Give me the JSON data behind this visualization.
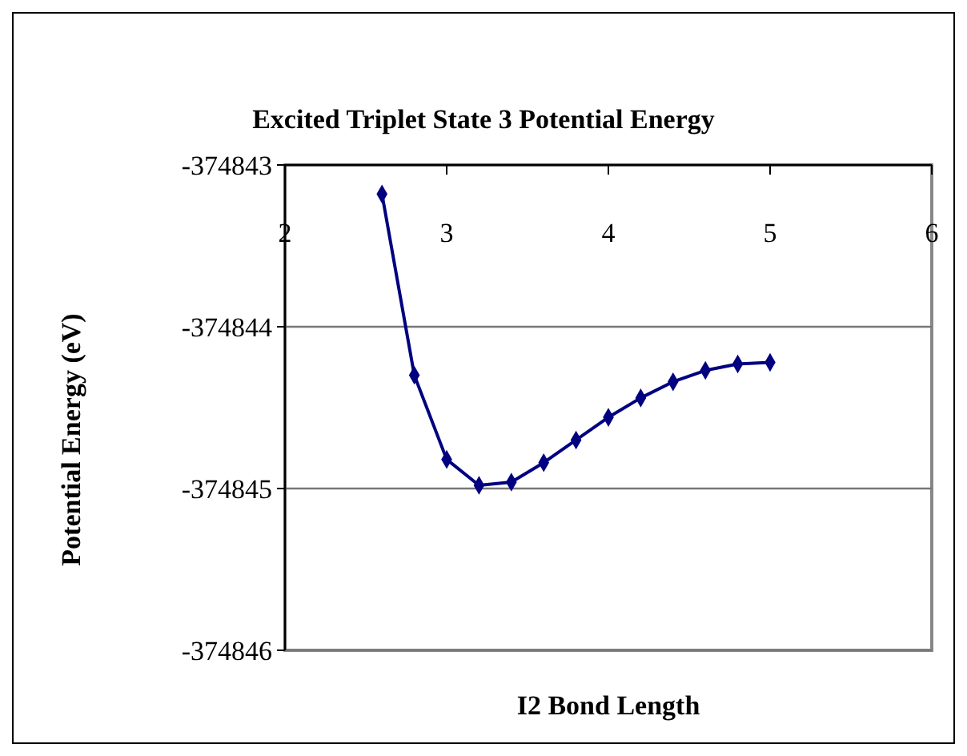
{
  "chart_data": {
    "type": "line",
    "title": "Excited Triplet State 3 Potential Energy",
    "xlabel": "I2 Bond Length",
    "ylabel": "Potential Energy (eV)",
    "x": [
      2.6,
      2.8,
      3.0,
      3.2,
      3.4,
      3.6,
      3.8,
      4.0,
      4.2,
      4.4,
      4.6,
      4.8,
      5.0
    ],
    "series": [
      {
        "color": "#000080",
        "values": [
          -374843.18,
          -374844.3,
          -374844.82,
          -374844.98,
          -374844.96,
          -374844.84,
          -374844.7,
          -374844.56,
          -374844.44,
          -374844.34,
          -374844.27,
          -374844.23,
          -374844.22
        ]
      }
    ],
    "xlim": [
      2,
      6
    ],
    "xticks": [
      2,
      3,
      4,
      5,
      6
    ],
    "ylim": [
      -374846,
      -374843
    ],
    "yticks": [
      -374846,
      -374845,
      -374844,
      -374843
    ],
    "grid": "y",
    "marker": "diamond",
    "line_style": "solid"
  }
}
